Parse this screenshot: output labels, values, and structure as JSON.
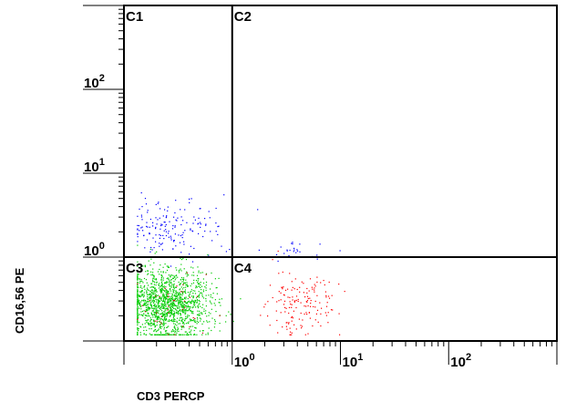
{
  "chart_data": {
    "type": "scatter",
    "xlabel": "CD3 PERCP",
    "ylabel": "CD16,56 PE",
    "x_scale": "log",
    "y_scale": "log",
    "xlim": [
      0.1,
      1000
    ],
    "ylim": [
      0.1,
      1000
    ],
    "x_ticks": [
      {
        "value": 1,
        "base": "10",
        "exp": "0"
      },
      {
        "value": 10,
        "base": "10",
        "exp": "1"
      },
      {
        "value": 100,
        "base": "10",
        "exp": "2"
      }
    ],
    "y_ticks": [
      {
        "value": 1,
        "base": "10",
        "exp": "0"
      },
      {
        "value": 10,
        "base": "10",
        "exp": "1"
      },
      {
        "value": 100,
        "base": "10",
        "exp": "2"
      }
    ],
    "quadrant_divider": {
      "x": 1,
      "y": 1
    },
    "quadrants": [
      {
        "label": "C1",
        "position": "top-left"
      },
      {
        "label": "C2",
        "position": "top-right"
      },
      {
        "label": "C3",
        "position": "bottom-left"
      },
      {
        "label": "C4",
        "position": "bottom-right"
      }
    ],
    "populations": [
      {
        "color": "#0000ff",
        "count": 170,
        "x_log_mean": -0.55,
        "x_log_sd": 0.22,
        "y_log_mean": 0.35,
        "y_log_sd": 0.18
      },
      {
        "color": "#00cc00",
        "count": 1500,
        "x_log_mean": -0.6,
        "x_log_sd": 0.2,
        "y_log_mean": -0.55,
        "y_log_sd": 0.22
      },
      {
        "color": "#ff0000",
        "count": 160,
        "x_log_mean": 0.62,
        "x_log_sd": 0.17,
        "y_log_mean": -0.55,
        "y_log_sd": 0.2
      },
      {
        "color": "#0000ff",
        "count": 25,
        "x_log_mean": 0.6,
        "x_log_sd": 0.12,
        "y_log_mean": 0.1,
        "y_log_sd": 0.07
      },
      {
        "color": "#cc0000",
        "count": 40,
        "x_log_mean": -0.6,
        "x_log_sd": 0.18,
        "y_log_mean": -0.6,
        "y_log_sd": 0.2
      }
    ]
  }
}
